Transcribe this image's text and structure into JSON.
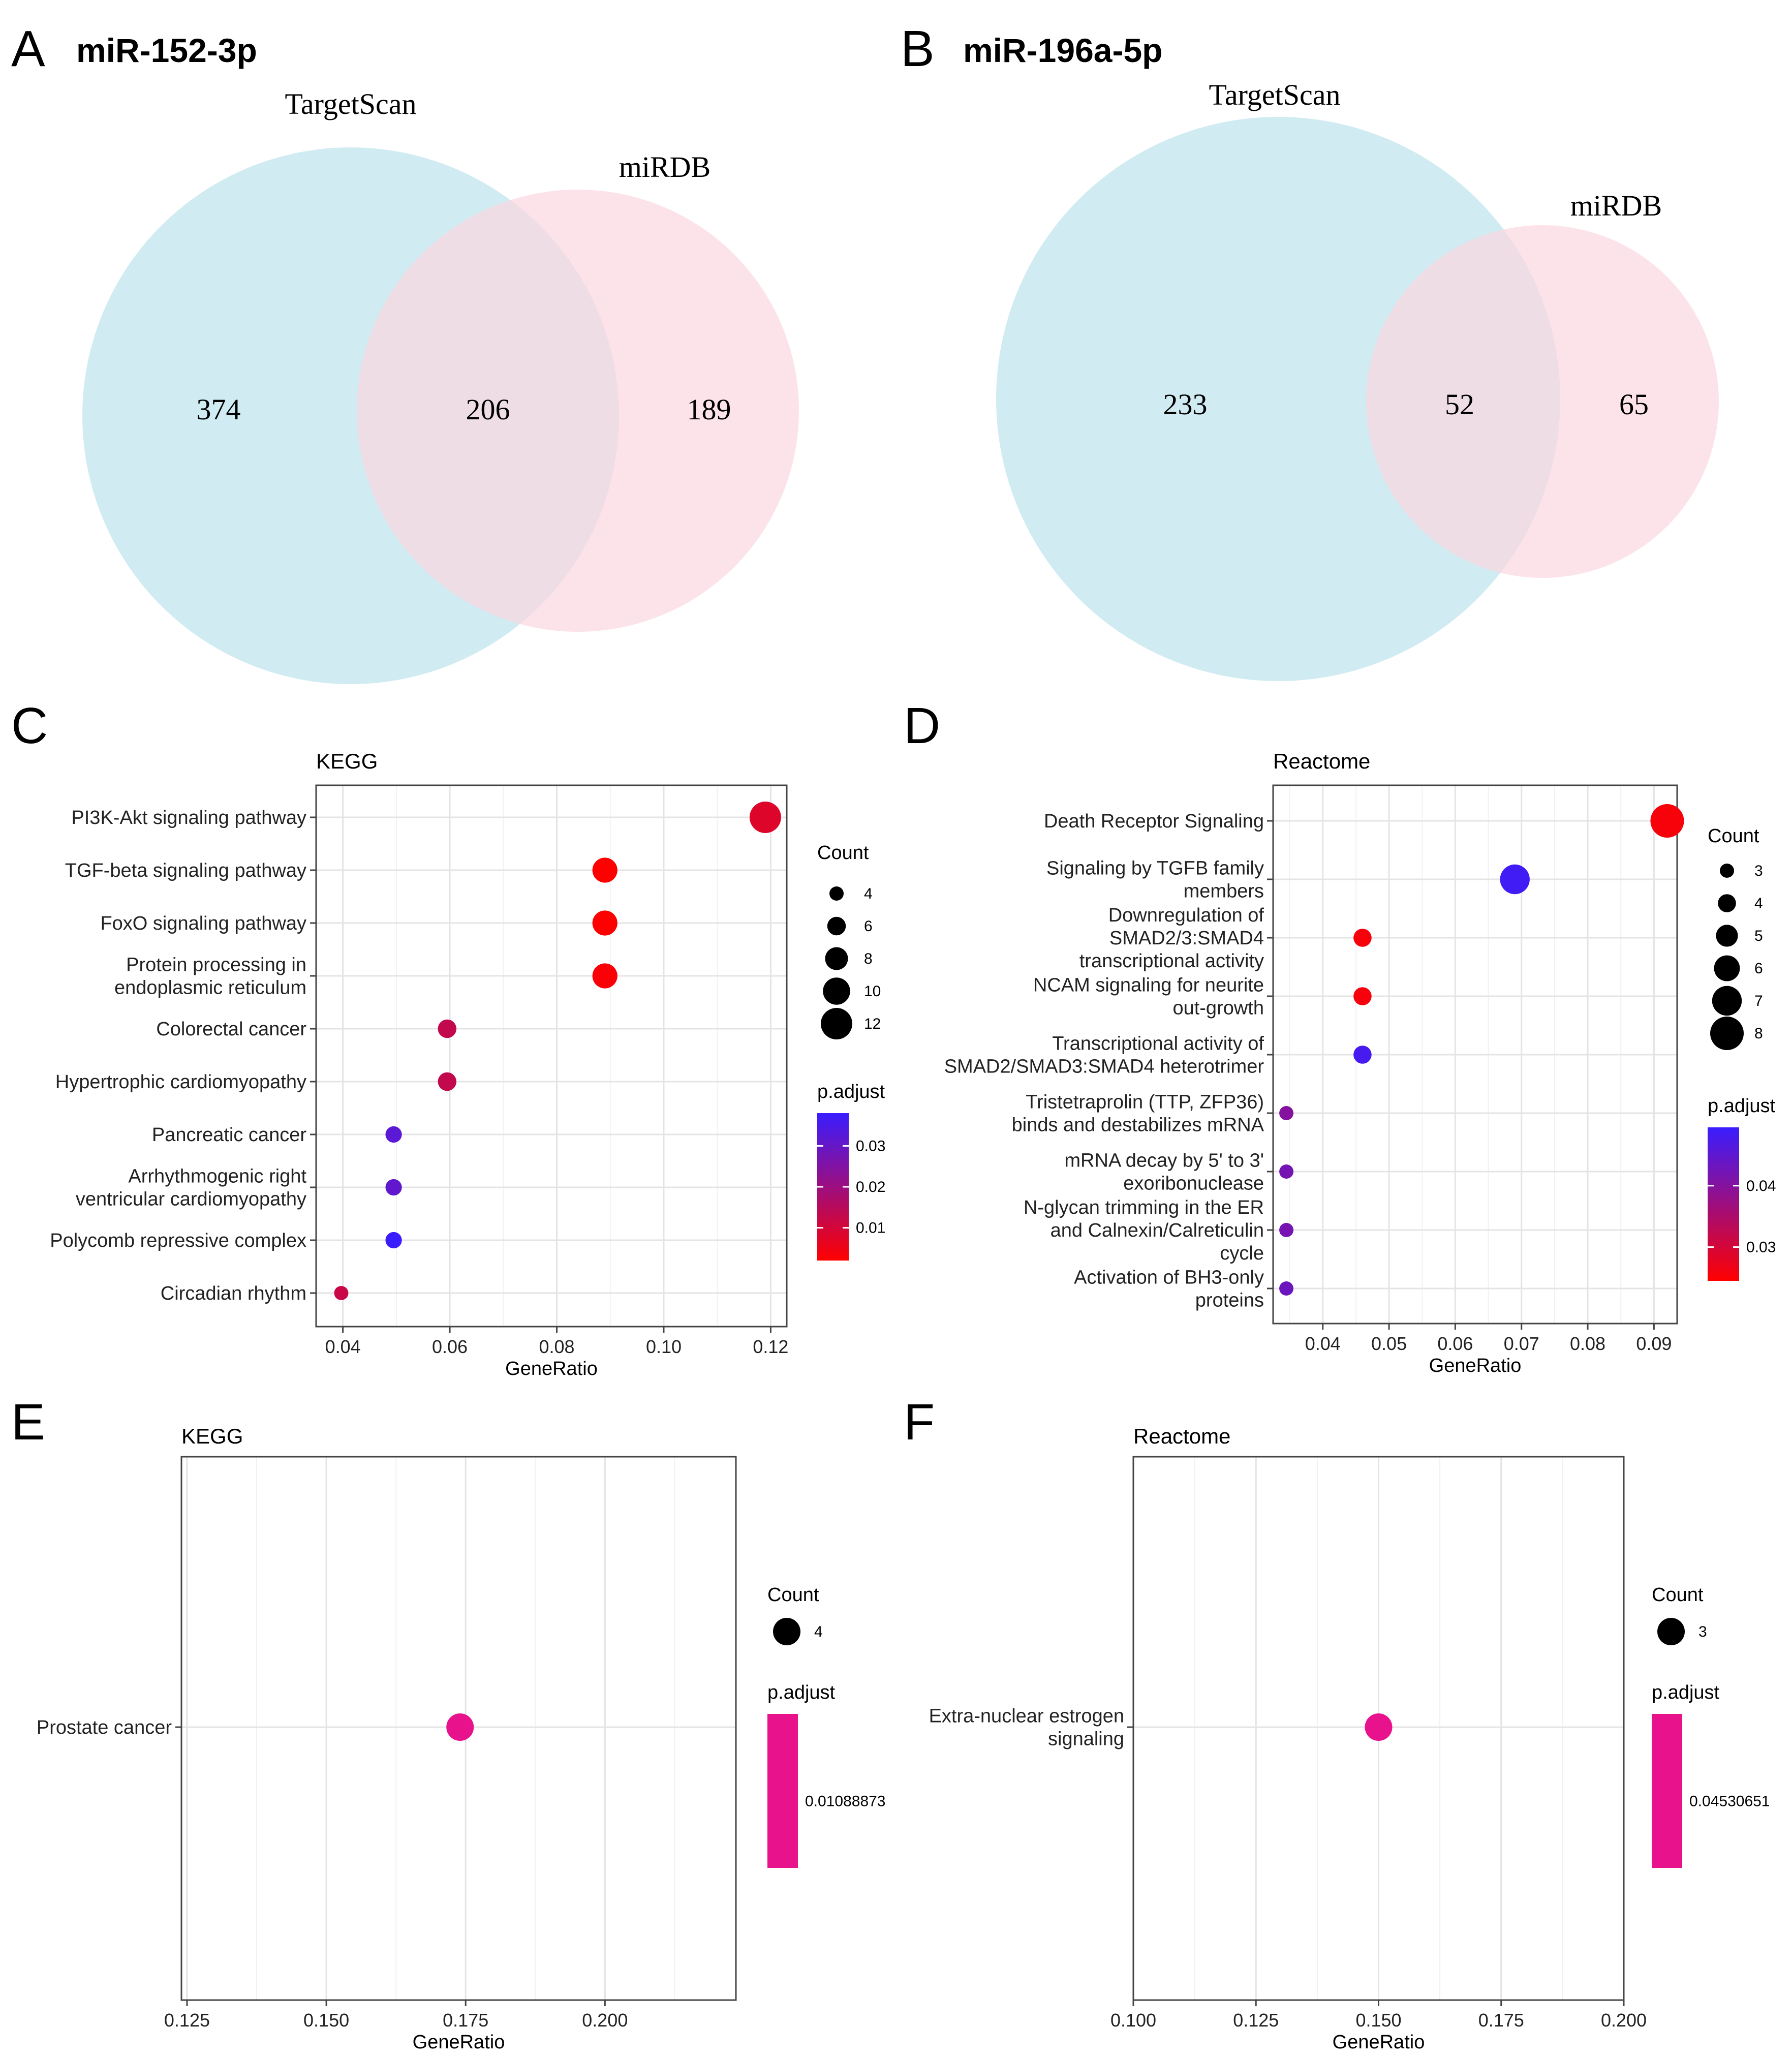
{
  "panels": {
    "A": {
      "letter": "A",
      "title": "miR-152-3p"
    },
    "B": {
      "letter": "B",
      "title": "miR-196a-5p"
    },
    "C": {
      "letter": "C"
    },
    "D": {
      "letter": "D"
    },
    "E": {
      "letter": "E"
    },
    "F": {
      "letter": "F"
    }
  },
  "venn": [
    {
      "left_label": "TargetScan",
      "right_label": "miRDB",
      "left_only": "374",
      "both": "206",
      "right_only": "189",
      "left_color": "#cdeaf1",
      "right_color": "#fbd7df"
    },
    {
      "left_label": "TargetScan",
      "right_label": "miRDB",
      "left_only": "233",
      "both": "52",
      "right_only": "65",
      "left_color": "#cdeaf1",
      "right_color": "#fbd7df"
    }
  ],
  "chart_data": [
    {
      "type": "scatter",
      "title": "KEGG",
      "xlabel": "GeneRatio",
      "xlim": [
        0.035,
        0.123
      ],
      "xticks": [
        "0.04",
        "0.06",
        "0.08",
        "0.10",
        "0.12"
      ],
      "xtick_values": [
        0.04,
        0.06,
        0.08,
        0.1,
        0.12
      ],
      "points": [
        {
          "label": "PI3K-Akt signaling pathway",
          "x": 0.119,
          "count": 12,
          "padj": 0.008
        },
        {
          "label": "TGF-beta signaling pathway",
          "x": 0.089,
          "count": 9,
          "padj": 0.002
        },
        {
          "label": "FoxO signaling pathway",
          "x": 0.089,
          "count": 9,
          "padj": 0.002
        },
        {
          "label": "Protein processing in\nendoplasmic reticulum",
          "x": 0.089,
          "count": 9,
          "padj": 0.003
        },
        {
          "label": "Colorectal cancer",
          "x": 0.0595,
          "count": 6,
          "padj": 0.013
        },
        {
          "label": "Hypertrophic cardiomyopathy",
          "x": 0.0595,
          "count": 6,
          "padj": 0.013
        },
        {
          "label": "Pancreatic cancer",
          "x": 0.0495,
          "count": 5,
          "padj": 0.032
        },
        {
          "label": "Arrhythmogenic right\nventricular cardiomyopathy",
          "x": 0.0495,
          "count": 5,
          "padj": 0.031
        },
        {
          "label": "Polycomb repressive complex",
          "x": 0.0495,
          "count": 5,
          "padj": 0.038
        },
        {
          "label": "Circadian rhythm",
          "x": 0.0397,
          "count": 4,
          "padj": 0.012
        }
      ],
      "legend": {
        "count_title": "Count",
        "count_values": [
          4,
          6,
          8,
          10,
          12
        ],
        "count_labels": [
          "4",
          "6",
          "8",
          "10",
          "12"
        ],
        "count_range": [
          4,
          12
        ],
        "padj_title": "p.adjust",
        "padj_range": [
          0.002,
          0.038
        ],
        "padj_ticks": [
          0.03,
          0.02,
          0.01
        ],
        "padj_tick_labels": [
          "0.03",
          "0.02",
          "0.01"
        ]
      }
    },
    {
      "type": "scatter",
      "title": "Reactome",
      "xlabel": "GeneRatio",
      "xlim": [
        0.0325,
        0.0935
      ],
      "xticks": [
        "0.04",
        "0.05",
        "0.06",
        "0.07",
        "0.08",
        "0.09"
      ],
      "xtick_values": [
        0.04,
        0.05,
        0.06,
        0.07,
        0.08,
        0.09
      ],
      "points": [
        {
          "label": "Death Receptor Signaling",
          "x": 0.092,
          "count": 8,
          "padj": 0.0255
        },
        {
          "label": "Signaling by TGFB family\nmembers",
          "x": 0.069,
          "count": 7,
          "padj": 0.0485
        },
        {
          "label": "Downregulation of\nSMAD2/3:SMAD4\ntranscriptional activity",
          "x": 0.046,
          "count": 4,
          "padj": 0.0255
        },
        {
          "label": "NCAM signaling for neurite\nout-growth",
          "x": 0.046,
          "count": 4,
          "padj": 0.0257
        },
        {
          "label": "Transcriptional activity of\nSMAD2/SMAD3:SMAD4 heterotrimer",
          "x": 0.046,
          "count": 4,
          "padj": 0.048
        },
        {
          "label": "Tristetraprolin (TTP, ZFP36)\nbinds and destabilizes mRNA",
          "x": 0.0345,
          "count": 3,
          "padj": 0.04
        },
        {
          "label": "mRNA decay by 5' to 3'\nexoribonuclease",
          "x": 0.0345,
          "count": 3,
          "padj": 0.042
        },
        {
          "label": "N-glycan trimming in the ER\nand Calnexin/Calreticulin\ncycle",
          "x": 0.0345,
          "count": 3,
          "padj": 0.042
        },
        {
          "label": "Activation of BH3-only\nproteins",
          "x": 0.0345,
          "count": 3,
          "padj": 0.043
        }
      ],
      "legend": {
        "count_title": "Count",
        "count_values": [
          3,
          4,
          5,
          6,
          7,
          8
        ],
        "count_labels": [
          "3",
          "4",
          "5",
          "6",
          "7",
          "8"
        ],
        "count_range": [
          3,
          8
        ],
        "padj_title": "p.adjust",
        "padj_range": [
          0.0245,
          0.0495
        ],
        "padj_ticks": [
          0.04,
          0.03
        ],
        "padj_tick_labels": [
          "0.04",
          "0.03"
        ]
      }
    },
    {
      "type": "scatter",
      "title": "KEGG",
      "xlabel": "GeneRatio",
      "xlim": [
        0.124,
        0.2235
      ],
      "xticks": [
        "0.125",
        "0.150",
        "0.175",
        "0.200"
      ],
      "xtick_values": [
        0.125,
        0.15,
        0.175,
        0.2
      ],
      "points": [
        {
          "label": "Prostate cancer",
          "x": 0.174,
          "count": 4,
          "padj": 0.01088873
        }
      ],
      "legend": {
        "count_title": "Count",
        "count_values": [
          4
        ],
        "count_labels": [
          "4"
        ],
        "count_range": [
          4,
          4
        ],
        "padj_title": "p.adjust",
        "padj_single": true,
        "padj_ticks": [
          0.01088873
        ],
        "padj_tick_labels": [
          "0.01088873"
        ],
        "padj_color": "#e8128c"
      }
    },
    {
      "type": "scatter",
      "title": "Reactome",
      "xlabel": "GeneRatio",
      "xlim": [
        0.1,
        0.2
      ],
      "xticks": [
        "0.100",
        "0.125",
        "0.150",
        "0.175",
        "0.200"
      ],
      "xtick_values": [
        0.1,
        0.125,
        0.15,
        0.175,
        0.2
      ],
      "points": [
        {
          "label": "Extra-nuclear estrogen\nsignaling",
          "x": 0.15,
          "count": 3,
          "padj": 0.04530651
        }
      ],
      "legend": {
        "count_title": "Count",
        "count_values": [
          3
        ],
        "count_labels": [
          "3"
        ],
        "count_range": [
          3,
          3
        ],
        "padj_title": "p.adjust",
        "padj_single": true,
        "padj_ticks": [
          0.04530651
        ],
        "padj_tick_labels": [
          "0.04530651"
        ],
        "padj_color": "#e8128c"
      }
    }
  ]
}
